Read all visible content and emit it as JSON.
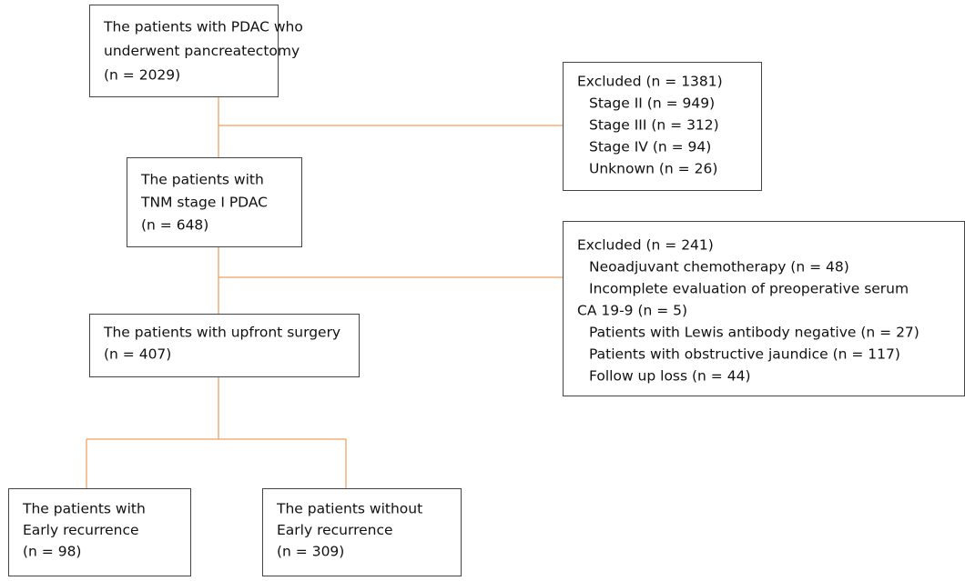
{
  "nodes": [
    {
      "lines": [
        "The patients with PDAC who",
        "underwent pancreatectomy",
        "(n = 2029)"
      ]
    },
    {
      "lines": [
        "Excluded (n = 1381)",
        "Stage II (n = 949)",
        "Stage III (n = 312)",
        "Stage IV (n = 94)",
        "Unknown (n = 26)"
      ]
    },
    {
      "lines": [
        "The patients with",
        "TNM stage I PDAC",
        "(n = 648)"
      ]
    },
    {
      "lines": [
        "Excluded (n = 241)",
        "Neoadjuvant chemotherapy  (n = 48)",
        "Incomplete evaluation of preoperative serum",
        "CA 19-9 (n = 5)",
        "Patients with Lewis antibody negative (n = 27)",
        "Patients with obstructive jaundice (n = 117)",
        "Follow up loss (n = 44)"
      ]
    },
    {
      "lines": [
        "The patients with upfront surgery",
        "(n = 407)"
      ]
    },
    {
      "lines": [
        "The patients with",
        "Early recurrence",
        "(n = 98)"
      ]
    },
    {
      "lines": [
        "The patients without",
        "Early recurrence",
        "(n = 309)"
      ]
    }
  ]
}
